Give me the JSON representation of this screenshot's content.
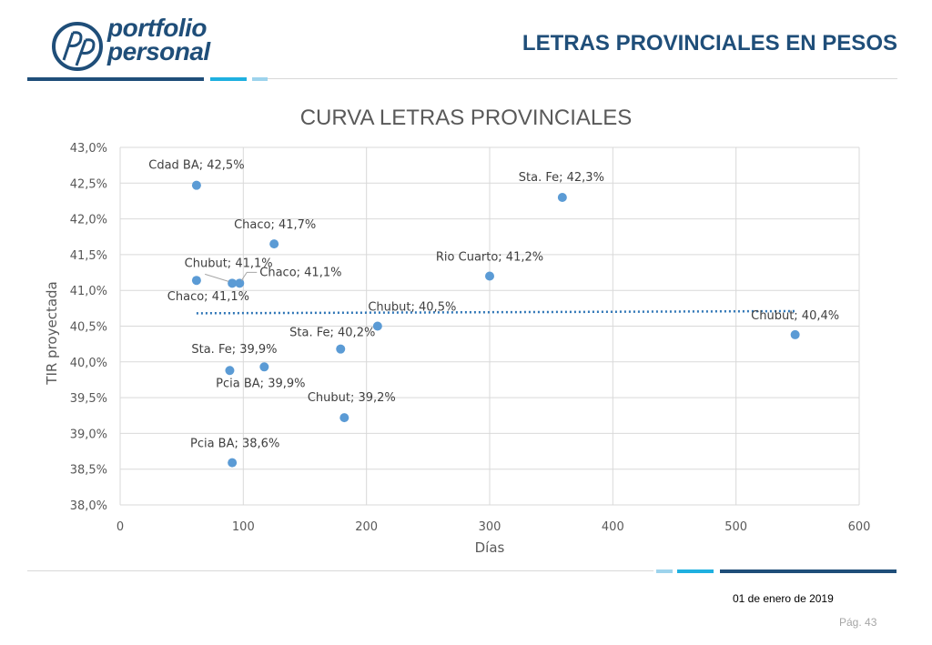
{
  "header": {
    "logo_text_line1": "portfolio",
    "logo_text_line2": "personal",
    "title": "LETRAS PROVINCIALES EN PESOS"
  },
  "colors": {
    "brand_dark": "#1f4e79",
    "brand_mid": "#1fb0e0",
    "brand_light": "#9dd3ec",
    "point": "#5b9bd5",
    "trend": "#2e75b6"
  },
  "chart_data": {
    "type": "scatter",
    "title": "CURVA LETRAS PROVINCIALES",
    "xlabel": "Días",
    "ylabel": "TIR proyectada",
    "xlim": [
      0,
      600
    ],
    "ylim": [
      38.0,
      43.0
    ],
    "x_ticks": [
      "0",
      "100",
      "200",
      "300",
      "400",
      "500",
      "600"
    ],
    "y_ticks": [
      "38,0%",
      "38,5%",
      "39,0%",
      "39,5%",
      "40,0%",
      "40,5%",
      "41,0%",
      "41,5%",
      "42,0%",
      "42,5%",
      "43,0%"
    ],
    "grid": true,
    "trendline": {
      "type": "linear",
      "style": "dotted",
      "from": [
        62,
        40.68
      ],
      "to": [
        548,
        40.71
      ]
    },
    "points": [
      {
        "x": 62,
        "y": 42.47,
        "label": "Cdad BA; 42,5%"
      },
      {
        "x": 359,
        "y": 42.3,
        "label": "Sta. Fe; 42,3%"
      },
      {
        "x": 125,
        "y": 41.65,
        "label": "Chaco; 41,7%"
      },
      {
        "x": 300,
        "y": 41.2,
        "label": "Rio Cuarto; 41,2%"
      },
      {
        "x": 62,
        "y": 41.14,
        "label": "Chaco; 41,1%"
      },
      {
        "x": 91,
        "y": 41.1,
        "label": "Chubut; 41,1%"
      },
      {
        "x": 97,
        "y": 41.1,
        "label": "Chaco; 41,1%"
      },
      {
        "x": 209,
        "y": 40.5,
        "label": "Chubut; 40,5%"
      },
      {
        "x": 548,
        "y": 40.38,
        "label": "Chubut; 40,4%"
      },
      {
        "x": 179,
        "y": 40.18,
        "label": "Sta. Fe; 40,2%"
      },
      {
        "x": 89,
        "y": 39.88,
        "label": "Sta. Fe; 39,9%"
      },
      {
        "x": 117,
        "y": 39.93,
        "label": "Pcia BA; 39,9%"
      },
      {
        "x": 182,
        "y": 39.22,
        "label": "Chubut; 39,2%"
      },
      {
        "x": 91,
        "y": 38.59,
        "label": "Pcia BA; 38,6%"
      }
    ]
  },
  "footer": {
    "date": "01 de enero de 2019",
    "page": "Pág. 43"
  }
}
